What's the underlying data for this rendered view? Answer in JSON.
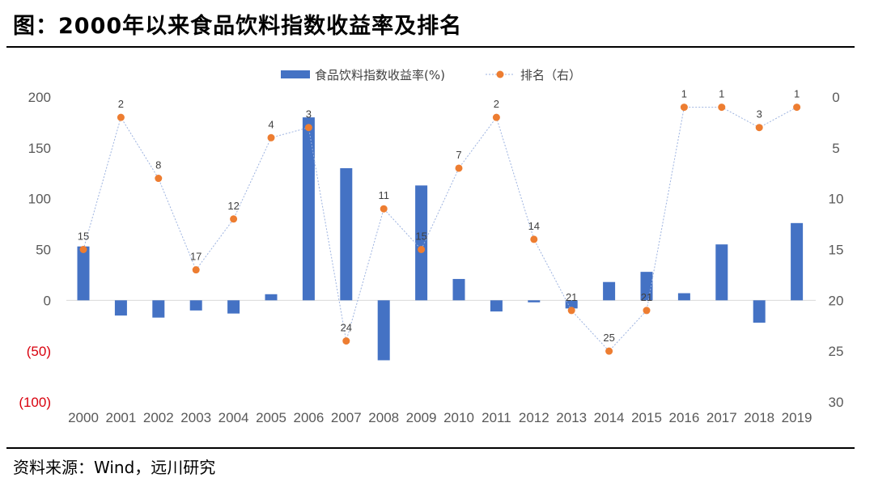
{
  "title": "图：2000年以来食品饮料指数收益率及排名",
  "source": "资料来源：Wind，远川研究",
  "chart_data": {
    "type": "bar",
    "categories": [
      "2000",
      "2001",
      "2002",
      "2003",
      "2004",
      "2005",
      "2006",
      "2007",
      "2008",
      "2009",
      "2010",
      "2011",
      "2012",
      "2013",
      "2014",
      "2015",
      "2016",
      "2017",
      "2018",
      "2019"
    ],
    "series": [
      {
        "name": "食品饮料指数收益率(%)",
        "type": "bar",
        "axis": "left",
        "color": "#4472c4",
        "values": [
          53,
          -15,
          -17,
          -10,
          -13,
          6,
          180,
          130,
          -59,
          113,
          21,
          -11,
          -2,
          -8,
          18,
          28,
          7,
          55,
          -22,
          76
        ]
      },
      {
        "name": "排名（右）",
        "type": "line",
        "axis": "right",
        "color": "#ed7d31",
        "values": [
          15,
          2,
          8,
          17,
          12,
          4,
          3,
          24,
          11,
          15,
          7,
          2,
          14,
          21,
          25,
          21,
          1,
          1,
          3,
          1
        ]
      }
    ],
    "y_left": {
      "ylim": [
        -100,
        200
      ],
      "ticks": [
        "200",
        "150",
        "100",
        "50",
        "0",
        "(50)",
        "(100)"
      ]
    },
    "y_right": {
      "ylim": [
        0,
        30
      ],
      "inverted": true,
      "ticks": [
        "0",
        "5",
        "10",
        "15",
        "20",
        "25",
        "30"
      ]
    },
    "legend": "top-center",
    "grid": false
  }
}
